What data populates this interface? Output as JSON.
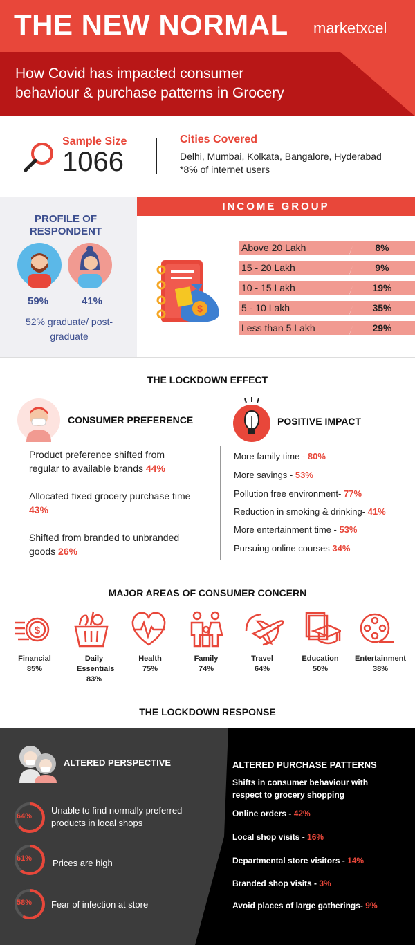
{
  "header": {
    "title": "THE NEW NORMAL",
    "brand": "marketxcel",
    "subtitle": "How Covid has impacted consumer behaviour & purchase patterns in Grocery"
  },
  "sample": {
    "label": "Sample Size",
    "value": "1066",
    "cities_label": "Cities Covered",
    "cities": "Delhi, Mumbai, Kolkata, Bangalore, Hyderabad",
    "note": "*8% of internet users"
  },
  "profile": {
    "title": "PROFILE OF RESPONDENT",
    "male_pct": "59%",
    "female_pct": "41%",
    "education": "52%  graduate/ post-graduate"
  },
  "income": {
    "title": "INCOME GROUP",
    "rows": [
      {
        "label": "Above 20 Lakh",
        "value": "8%"
      },
      {
        "label": "15 - 20 Lakh",
        "value": "9%"
      },
      {
        "label": "10 - 15 Lakh",
        "value": "19%"
      },
      {
        "label": "5 - 10 Lakh",
        "value": "35%"
      },
      {
        "label": "Less than 5 Lakh",
        "value": "29%"
      }
    ]
  },
  "lockdown_effect": {
    "title": "THE LOCKDOWN EFFECT",
    "preference_title": "CONSUMER PREFERENCE",
    "preferences": [
      {
        "text": "Product preference shifted from regular to available brands ",
        "value": "44%"
      },
      {
        "text": "Allocated fixed grocery purchase time ",
        "value": "43%"
      },
      {
        "text": "Shifted from branded to unbranded goods ",
        "value": "26%"
      }
    ],
    "impact_title": "POSITIVE IMPACT",
    "impacts": [
      {
        "text": "More family time - ",
        "value": "80%"
      },
      {
        "text": "More savings - ",
        "value": "53%"
      },
      {
        "text": "Pollution free environment- ",
        "value": "77%"
      },
      {
        "text": "Reduction in smoking & drinking- ",
        "value": "41%"
      },
      {
        "text": "More entertainment time - ",
        "value": "53%"
      },
      {
        "text": "Pursuing online courses ",
        "value": "34%"
      }
    ]
  },
  "concerns": {
    "title": "MAJOR AREAS OF CONSUMER CONCERN",
    "items": [
      {
        "label": "Financial",
        "value": "85%",
        "icon": "dollar-coin-icon"
      },
      {
        "label": "Daily Essentials",
        "value": "83%",
        "icon": "grocery-basket-icon"
      },
      {
        "label": "Health",
        "value": "75%",
        "icon": "heartbeat-icon"
      },
      {
        "label": "Family",
        "value": "74%",
        "icon": "family-icon"
      },
      {
        "label": "Travel",
        "value": "64%",
        "icon": "airplane-icon"
      },
      {
        "label": "Education",
        "value": "50%",
        "icon": "graduation-cap-icon"
      },
      {
        "label": "Entertainment",
        "value": "38%",
        "icon": "film-reel-icon"
      }
    ]
  },
  "lockdown_response": {
    "title": "THE LOCKDOWN RESPONSE",
    "perspective_title": "ALTERED PERSPECTIVE",
    "perspective": [
      {
        "value": "64%",
        "fraction": 0.64,
        "text": "Unable to find normally preferred products in local shops"
      },
      {
        "value": "61%",
        "fraction": 0.61,
        "text": "Prices are high"
      },
      {
        "value": "58%",
        "fraction": 0.58,
        "text": "Fear of infection at store"
      }
    ],
    "patterns_title": "ALTERED PURCHASE PATTERNS",
    "patterns_sub": "Shifts in consumer behaviour with respect to grocery shopping",
    "patterns": [
      {
        "text": "Online orders - ",
        "value": "42%"
      },
      {
        "text": "Local shop visits - ",
        "value": "16%"
      },
      {
        "text": "Departmental store visitors - ",
        "value": "14%"
      },
      {
        "text": "Branded shop visits - ",
        "value": "3%"
      },
      {
        "text": "Avoid places of large gatherings- ",
        "value": "9%"
      }
    ]
  },
  "colors": {
    "accent": "#e8473a",
    "dark_red": "#b81717",
    "navy": "#3d4f8f",
    "salmon": "#f19a91"
  }
}
